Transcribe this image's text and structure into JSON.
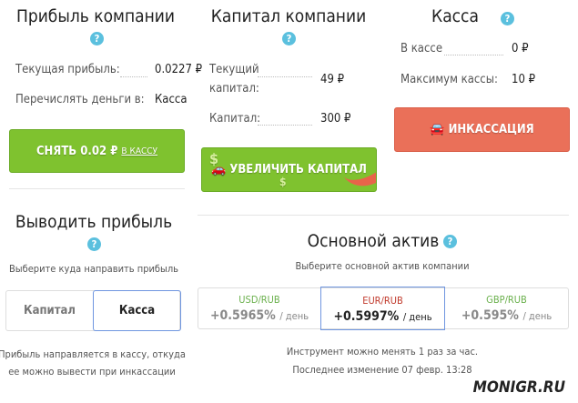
{
  "profit": {
    "title": "Прибыль компании",
    "current_label": "Текущая прибыль:",
    "current_value": "0.0227 ₽",
    "transfer_label": "Перечислять деньги в:",
    "transfer_value": "Касса",
    "withdraw_button": "СНЯТЬ 0.02 ₽",
    "withdraw_link": "В КАССУ"
  },
  "capital": {
    "title": "Капитал компании",
    "current_label_1": "Текущий",
    "current_label_2": "капитал:",
    "current_value": "49 ₽",
    "capital_label": "Капитал:",
    "capital_value": "300 ₽",
    "increase_button": "УВЕЛИЧИТЬ КАПИТАЛ"
  },
  "cash": {
    "title": "Касса",
    "in_cash_label": "В кассе",
    "in_cash_value": "0 ₽",
    "max_label": "Максимум кассы:",
    "max_value": "10 ₽",
    "collect_button": "ИНКАССАЦИЯ"
  },
  "withdraw": {
    "title": "Выводить прибыль",
    "subtitle": "Выберите куда направить прибыль",
    "options": [
      "Капитал",
      "Касса"
    ],
    "selected": "Касса",
    "note_1": "Прибыль направляется в кассу, откуда",
    "note_2": "ее можно вывести при инкассации"
  },
  "asset": {
    "title": "Основной актив",
    "subtitle": "Выберите основной актив компании",
    "items": [
      {
        "pair": "USD/RUB",
        "rate": "+0.5965%",
        "unit": "/ день",
        "color": "#6ab04c"
      },
      {
        "pair": "EUR/RUB",
        "rate": "+0.5997%",
        "unit": "/ день",
        "color": "#c0392b"
      },
      {
        "pair": "GBP/RUB",
        "rate": "+0.595%",
        "unit": "/ день",
        "color": "#6ab04c"
      }
    ],
    "selected": "EUR/RUB",
    "note_1": "Инструмент можно менять 1 раз за час.",
    "note_2": "Последнее изменение 07 февр. 13:28"
  },
  "watermark": "MONIGR.RU",
  "icons": {
    "help": "question-circle-icon",
    "car": "car-icon",
    "dollar": "dollar-sign-icon"
  },
  "colors": {
    "green": "#7fc22f",
    "red": "#ea7059",
    "help": "#5bc0de",
    "selected_border": "#6f96e0"
  }
}
